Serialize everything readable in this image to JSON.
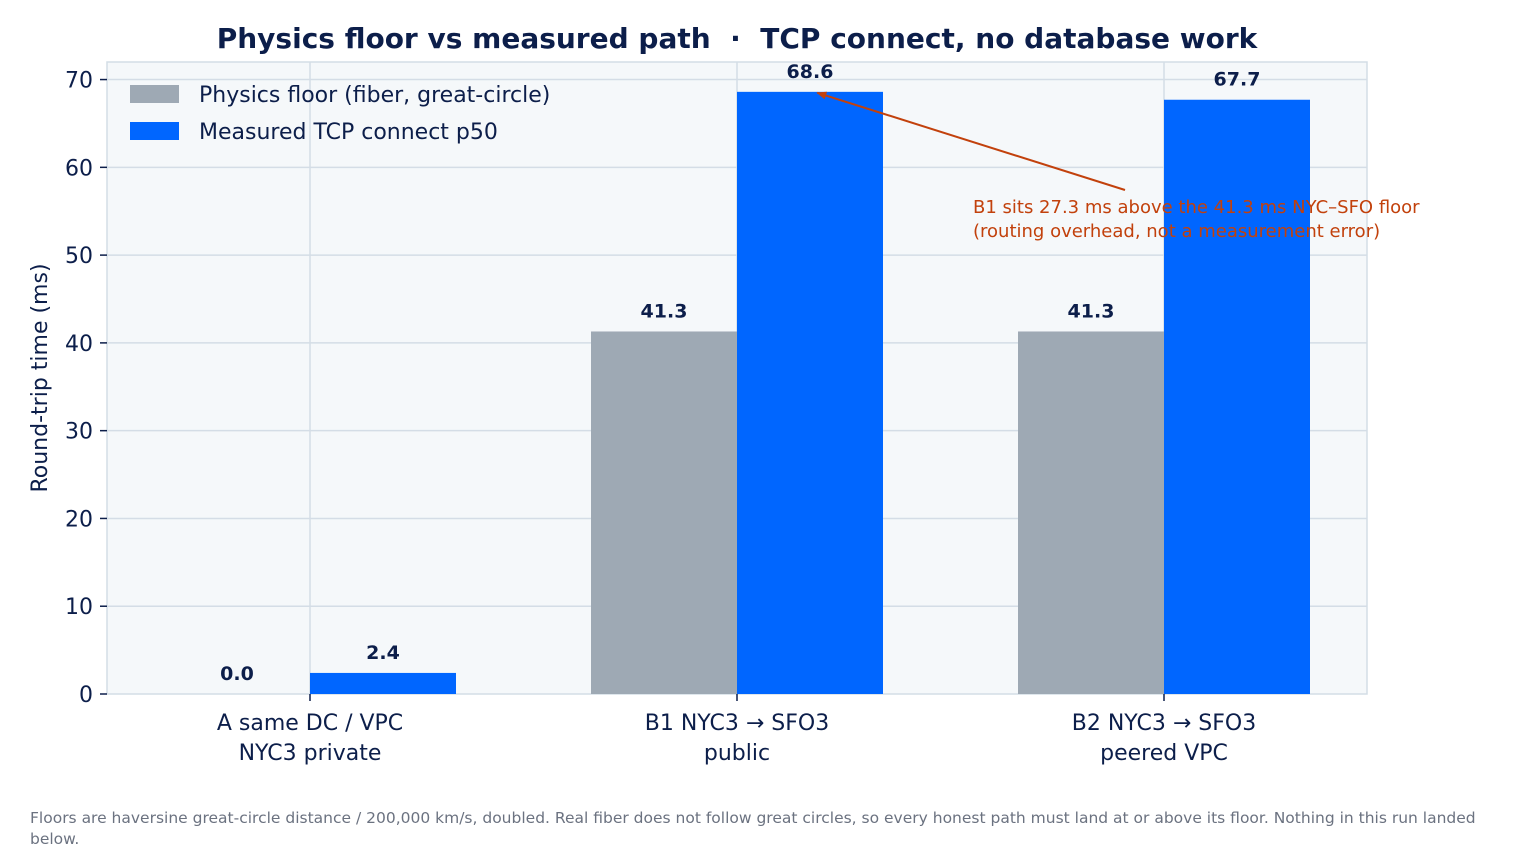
{
  "chart_data": {
    "type": "bar",
    "title": "Physics floor vs measured path  ·  TCP connect, no database work",
    "ylabel": "Round-trip time (ms)",
    "xlabel": "",
    "ylim": [
      0,
      72
    ],
    "yticks": [
      0,
      10,
      20,
      30,
      40,
      50,
      60,
      70
    ],
    "grid": true,
    "legend_placement": "top-left",
    "categories": [
      [
        "A  same DC / VPC",
        "NYC3 private"
      ],
      [
        "B1  NYC3 → SFO3",
        "public"
      ],
      [
        "B2  NYC3 → SFO3",
        "peered VPC"
      ]
    ],
    "series": [
      {
        "name": "Physics floor (fiber, great-circle)",
        "color": "#9ea9b4",
        "values": [
          0.0,
          41.3,
          41.3
        ],
        "labels": [
          "0.0",
          "41.3",
          "41.3"
        ]
      },
      {
        "name": "Measured TCP connect p50",
        "color": "#0066ff",
        "values": [
          2.4,
          68.6,
          67.7
        ],
        "labels": [
          "2.4",
          "68.6",
          "67.7"
        ]
      }
    ],
    "annotation": {
      "lines": [
        "B1 sits 27.3 ms above the 41.3 ms NYC–SFO floor",
        "(routing overhead, not a measurement error)"
      ],
      "color": "#c2410c",
      "points_to": {
        "category": 1,
        "series": 1
      }
    }
  },
  "footnote": "Floors are haversine great-circle distance / 200,000 km/s, doubled. Real fiber does not follow great circles, so every honest path must land at or above its floor. Nothing in this run landed below."
}
